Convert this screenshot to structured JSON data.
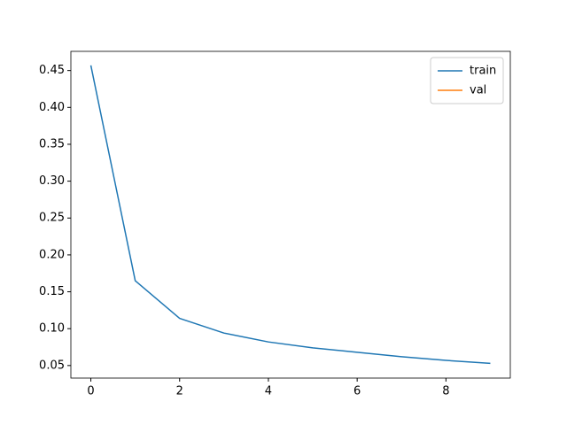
{
  "chart_data": {
    "type": "line",
    "x": [
      0,
      1,
      2,
      3,
      4,
      5,
      6,
      7,
      8,
      9
    ],
    "series": [
      {
        "name": "train",
        "color": "#1f77b4",
        "values": [
          0.457,
          0.165,
          0.114,
          0.094,
          0.082,
          0.074,
          0.068,
          0.062,
          0.057,
          0.053
        ]
      },
      {
        "name": "val",
        "color": "#ff7f0e",
        "values": [
          null,
          null,
          null,
          null,
          null,
          null,
          null,
          null,
          null,
          null
        ]
      }
    ],
    "xlim": [
      -0.45,
      9.45
    ],
    "xticks": [
      0,
      2,
      4,
      6,
      8
    ],
    "ylim": [
      0.033,
      0.476
    ],
    "yticks": [
      {
        "value": 0.05,
        "label": "0.05"
      },
      {
        "value": 0.1,
        "label": "0.10"
      },
      {
        "value": 0.15,
        "label": "0.15"
      },
      {
        "value": 0.2,
        "label": "0.20"
      },
      {
        "value": 0.25,
        "label": "0.25"
      },
      {
        "value": 0.3,
        "label": "0.30"
      },
      {
        "value": 0.35,
        "label": "0.35"
      },
      {
        "value": 0.4,
        "label": "0.40"
      },
      {
        "value": 0.45,
        "label": "0.45"
      }
    ],
    "legend": "upper right",
    "grid": false
  }
}
